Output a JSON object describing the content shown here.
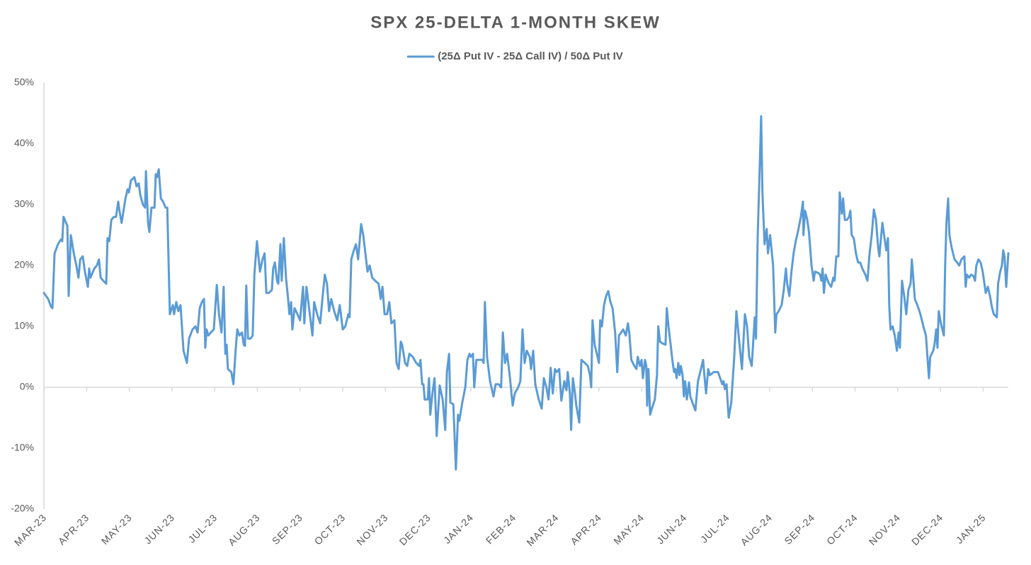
{
  "chart_data": {
    "type": "line",
    "title": "SPX 25-DELTA 1-MONTH SKEW",
    "xlim": [
      0,
      22.59
    ],
    "xticks": [
      {
        "value": 0,
        "label": "MAR-23"
      },
      {
        "value": 1,
        "label": "APR-23"
      },
      {
        "value": 2,
        "label": "MAY-23"
      },
      {
        "value": 3,
        "label": "JUN-23"
      },
      {
        "value": 4,
        "label": "JUL-23"
      },
      {
        "value": 5,
        "label": "AUG-23"
      },
      {
        "value": 6,
        "label": "SEP-23"
      },
      {
        "value": 7,
        "label": "OCT-23"
      },
      {
        "value": 8,
        "label": "NOV-23"
      },
      {
        "value": 9,
        "label": "DEC-23"
      },
      {
        "value": 10,
        "label": "JAN-24"
      },
      {
        "value": 11,
        "label": "FEB-24"
      },
      {
        "value": 12,
        "label": "MAR-24"
      },
      {
        "value": 13,
        "label": "APR-24"
      },
      {
        "value": 14,
        "label": "MAY-24"
      },
      {
        "value": 15,
        "label": "JUN-24"
      },
      {
        "value": 16,
        "label": "JUL-24"
      },
      {
        "value": 17,
        "label": "AUG-24"
      },
      {
        "value": 18,
        "label": "SEP-24"
      },
      {
        "value": 19,
        "label": "OCT-24"
      },
      {
        "value": 20,
        "label": "NOV-24"
      },
      {
        "value": 21,
        "label": "DEC-24"
      },
      {
        "value": 22,
        "label": "JAN-25"
      }
    ],
    "ylim": [
      -20,
      50
    ],
    "yticks": [
      {
        "value": -20,
        "label": "-20%"
      },
      {
        "value": -10,
        "label": "-10%"
      },
      {
        "value": 0,
        "label": "0%"
      },
      {
        "value": 10,
        "label": "10%"
      },
      {
        "value": 20,
        "label": "20%"
      },
      {
        "value": 30,
        "label": "30%"
      },
      {
        "value": 40,
        "label": "40%"
      },
      {
        "value": 50,
        "label": "50%"
      }
    ],
    "grid": false,
    "legend": "top",
    "x": [
      0.0,
      0.1,
      0.17,
      0.2,
      0.25,
      0.33,
      0.4,
      0.43,
      0.46,
      0.55,
      0.58,
      0.63,
      0.7,
      0.76,
      0.81,
      0.85,
      0.91,
      0.96,
      1.03,
      1.06,
      1.09,
      1.18,
      1.24,
      1.29,
      1.33,
      1.39,
      1.46,
      1.49,
      1.53,
      1.58,
      1.64,
      1.69,
      1.74,
      1.77,
      1.82,
      1.91,
      1.96,
      1.99,
      2.04,
      2.12,
      2.17,
      2.22,
      2.26,
      2.32,
      2.37,
      2.39,
      2.44,
      2.47,
      2.52,
      2.59,
      2.62,
      2.65,
      2.69,
      2.74,
      2.79,
      2.85,
      2.89,
      2.95,
      3.02,
      3.05,
      3.1,
      3.15,
      3.2,
      3.27,
      3.35,
      3.4,
      3.48,
      3.55,
      3.6,
      3.65,
      3.7,
      3.75,
      3.78,
      3.81,
      3.85,
      3.91,
      3.98,
      4.05,
      4.1,
      4.16,
      4.21,
      4.25,
      4.28,
      4.31,
      4.39,
      4.44,
      4.49,
      4.53,
      4.58,
      4.64,
      4.68,
      4.71,
      4.74,
      4.78,
      4.84,
      4.89,
      4.93,
      4.99,
      5.06,
      5.12,
      5.17,
      5.21,
      5.27,
      5.34,
      5.37,
      5.41,
      5.46,
      5.49,
      5.54,
      5.57,
      5.62,
      5.67,
      5.72,
      5.75,
      5.79,
      5.82,
      5.87,
      5.94,
      6.0,
      6.07,
      6.1,
      6.15,
      6.22,
      6.29,
      6.33,
      6.4,
      6.47,
      6.53,
      6.58,
      6.63,
      6.68,
      6.73,
      6.8,
      6.87,
      6.93,
      7.0,
      7.06,
      7.13,
      7.16,
      7.2,
      7.26,
      7.31,
      7.36,
      7.43,
      7.48,
      7.53,
      7.58,
      7.63,
      7.69,
      7.76,
      7.84,
      7.89,
      7.93,
      7.98,
      8.04,
      8.09,
      8.14,
      8.21,
      8.26,
      8.31,
      8.36,
      8.39,
      8.46,
      8.51,
      8.56,
      8.64,
      8.72,
      8.79,
      8.82,
      8.86,
      8.89,
      8.92,
      8.99,
      9.02,
      9.05,
      9.1,
      9.15,
      9.2,
      9.27,
      9.34,
      9.4,
      9.44,
      9.49,
      9.52,
      9.59,
      9.65,
      9.7,
      9.73,
      9.8,
      9.87,
      9.92,
      9.97,
      10.0,
      10.05,
      10.08,
      10.13,
      10.18,
      10.27,
      10.3,
      10.33,
      10.38,
      10.45,
      10.53,
      10.58,
      10.65,
      10.71,
      10.75,
      10.8,
      10.85,
      10.91,
      10.98,
      11.03,
      11.11,
      11.16,
      11.21,
      11.26,
      11.31,
      11.38,
      11.41,
      11.46,
      11.51,
      11.59,
      11.66,
      11.71,
      11.77,
      11.82,
      11.87,
      11.92,
      11.97,
      12.01,
      12.07,
      12.12,
      12.19,
      12.24,
      12.27,
      12.32,
      12.35,
      12.39,
      12.44,
      12.47,
      12.54,
      12.59,
      12.67,
      12.74,
      12.79,
      12.82,
      12.85,
      12.9,
      12.97,
      13.0,
      13.03,
      13.07,
      13.12,
      13.17,
      13.22,
      13.27,
      13.32,
      13.38,
      13.43,
      13.47,
      13.52,
      13.57,
      13.63,
      13.68,
      13.71,
      13.76,
      13.83,
      13.88,
      13.91,
      13.96,
      14.0,
      14.03,
      14.08,
      14.11,
      14.13,
      14.16,
      14.2,
      14.24,
      14.31,
      14.36,
      14.39,
      14.43,
      14.49,
      14.56,
      14.59,
      14.63,
      14.68,
      14.72,
      14.76,
      14.79,
      14.82,
      14.86,
      14.89,
      14.92,
      14.96,
      14.99,
      15.02,
      15.06,
      15.11,
      15.14,
      15.19,
      15.26,
      15.32,
      15.39,
      15.44,
      15.47,
      15.51,
      15.56,
      15.6,
      15.69,
      15.79,
      15.84,
      15.89,
      15.92,
      15.95,
      15.99,
      16.02,
      16.04,
      16.1,
      16.17,
      16.22,
      16.28,
      16.35,
      16.42,
      16.47,
      16.52,
      16.58,
      16.65,
      16.68,
      16.72,
      16.77,
      16.8,
      16.83,
      16.88,
      16.93,
      16.96,
      17.01,
      17.08,
      17.13,
      17.16,
      17.21,
      17.28,
      17.33,
      17.38,
      17.41,
      17.46,
      17.51,
      17.56,
      17.61,
      17.66,
      17.73,
      17.78,
      17.79,
      17.83,
      17.88,
      17.92,
      17.98,
      18.03,
      18.06,
      18.13,
      18.18,
      18.21,
      18.24,
      18.27,
      18.31,
      18.36,
      18.39,
      18.44,
      18.49,
      18.52,
      18.56,
      18.61,
      18.64,
      18.69,
      18.72,
      18.76,
      18.81,
      18.86,
      18.89,
      18.92,
      18.97,
      19.02,
      19.07,
      19.12,
      19.17,
      19.24,
      19.29,
      19.34,
      19.39,
      19.44,
      19.49,
      19.54,
      19.57,
      19.6,
      19.64,
      19.7,
      19.73,
      19.77,
      19.8,
      19.83,
      19.88,
      19.93,
      19.98,
      20.02,
      20.05,
      20.1,
      20.15,
      20.2,
      20.25,
      20.3,
      20.33,
      20.4,
      20.46,
      20.53,
      20.6,
      20.66,
      20.73,
      20.76,
      20.83,
      20.86,
      20.9,
      20.93,
      20.96,
      21.01,
      21.08,
      21.11,
      21.14,
      21.18,
      21.21,
      21.26,
      21.33,
      21.39,
      21.44,
      21.49,
      21.56,
      21.59,
      21.62,
      21.67,
      21.72,
      21.77,
      21.81,
      21.84,
      21.89,
      21.94,
      21.99,
      22.02,
      22.06,
      22.11,
      22.16,
      22.21,
      22.25,
      22.32,
      22.35,
      22.4,
      22.44,
      22.47,
      22.5,
      22.54,
      22.59
    ],
    "series": [
      {
        "name": "(25Δ Put IV - 25Δ Call IV) / 50Δ Put IV",
        "color": "#5b9bd5",
        "values": [
          15.5,
          14.5,
          13.2,
          13,
          22,
          23.5,
          24.3,
          24,
          28,
          26.5,
          15,
          25,
          22,
          20,
          18,
          21,
          21.5,
          19,
          16.5,
          19.5,
          18,
          19.5,
          20,
          21,
          18,
          17.5,
          17,
          24.5,
          24,
          27.5,
          28,
          28,
          30.5,
          29,
          27,
          31,
          32.5,
          32,
          34,
          34.5,
          33,
          33.5,
          31.5,
          30,
          29.5,
          35.5,
          27,
          25.5,
          29.5,
          29.5,
          35,
          34.5,
          35.8,
          31,
          30.5,
          29.5,
          29.5,
          12,
          13.5,
          12,
          14,
          12.5,
          13.5,
          6,
          4,
          8,
          9.5,
          10,
          9,
          13,
          14,
          14.5,
          6.5,
          9.5,
          8.5,
          9,
          9.5,
          16.8,
          12,
          9,
          16.5,
          5.5,
          7,
          3,
          2.5,
          0.5,
          6,
          9.5,
          8.5,
          9,
          7,
          6.8,
          16.7,
          8,
          8,
          8.5,
          18.5,
          24,
          19,
          21,
          22,
          15.5,
          15.5,
          16,
          19.5,
          20.5,
          17.5,
          17,
          23.5,
          17.5,
          24.5,
          18,
          14.5,
          12,
          14,
          9.5,
          13,
          12,
          11,
          16.5,
          10.5,
          16.5,
          12.5,
          8.5,
          14,
          12,
          10.5,
          15,
          18.5,
          17,
          12.5,
          14.5,
          12.5,
          11,
          13.5,
          9.5,
          10,
          12,
          11.5,
          21,
          22.5,
          23.5,
          21,
          26.8,
          25,
          22,
          19,
          20,
          18,
          17.5,
          17,
          14.5,
          16.5,
          12,
          12,
          14,
          10.5,
          11,
          4,
          3,
          7.5,
          7,
          4,
          3.5,
          5.5,
          5,
          4,
          3.5,
          4.5,
          0.5,
          0.5,
          -2,
          -2,
          1.5,
          -4.5,
          -1,
          1.5,
          -8,
          0.3,
          -2,
          -7,
          2.5,
          5.5,
          -2.5,
          -2.8,
          -13.5,
          -4.5,
          -5.5,
          -2.5,
          0,
          4.5,
          5.5,
          5,
          5.5,
          0,
          4.5,
          4.5,
          4.5,
          4,
          14,
          5,
          1,
          -1.5,
          0.5,
          0.5,
          0,
          9,
          4,
          5.5,
          2,
          -3,
          -1,
          0,
          1,
          9.5,
          4,
          6,
          5,
          3,
          6,
          0.5,
          -2,
          -3.5,
          1.5,
          0,
          -2,
          3.2,
          -1,
          3,
          2.5,
          3,
          -2.2,
          1,
          -0.5,
          2.5,
          -1,
          -7,
          1.5,
          -1,
          -3,
          -5.8,
          4.5,
          4,
          3.5,
          2,
          0,
          11,
          7,
          5,
          4,
          11,
          10,
          13.5,
          15,
          15.8,
          14,
          13,
          9,
          2.5,
          8.5,
          9,
          9.5,
          8.5,
          10.5,
          9,
          4.5,
          3.5,
          3,
          5,
          3.5,
          4.5,
          1.5,
          4.5,
          3.5,
          -3,
          3,
          -4.5,
          -3.5,
          -2,
          2,
          10,
          7.5,
          7.2,
          7,
          13,
          10,
          7,
          4.5,
          2.5,
          3,
          1.5,
          4,
          2,
          3.5,
          2,
          -1.5,
          1,
          -2,
          0.8,
          -1.5,
          -2.5,
          -3.8,
          1,
          3,
          4.5,
          2,
          -1,
          3,
          2,
          2.5,
          2.5,
          1.5,
          0.5,
          1,
          -0.3,
          0.5,
          -3,
          -5,
          -2.5,
          5,
          12.5,
          8,
          3,
          12,
          10,
          5,
          3.5,
          11.5,
          8,
          25,
          37,
          44.5,
          32,
          23.5,
          26,
          22,
          25,
          20,
          9,
          12,
          12.5,
          13.5,
          16,
          19.5,
          17,
          15,
          19,
          22,
          24,
          25.5,
          28,
          30.5,
          25,
          29,
          27.5,
          25.5,
          20,
          17.5,
          19,
          18.8,
          18.5,
          17.5,
          19.5,
          15.5,
          18.5,
          17.5,
          17,
          16.5,
          18,
          17.5,
          21.5,
          21.5,
          32,
          28.5,
          31,
          27.5,
          27.5,
          28,
          29,
          25,
          24.5,
          22,
          20.5,
          20.5,
          19.5,
          18.5,
          17.5,
          22,
          25,
          29.2,
          27.5,
          23,
          21.5,
          24,
          27,
          24,
          22.5,
          24.5,
          13.5,
          9.5,
          10,
          8.5,
          6,
          9,
          6.5,
          17.5,
          15,
          12,
          16,
          17,
          21,
          14.5,
          13.5,
          12,
          10,
          8.5,
          1.5,
          5,
          6,
          7,
          9.5,
          6.5,
          12.5,
          10.5,
          8.5,
          20,
          27,
          31,
          25,
          23,
          21,
          20.5,
          20,
          21,
          21.5,
          16.5,
          18.5,
          18,
          18.5,
          18.3,
          17.5,
          20,
          21,
          20.5,
          19,
          17.5,
          15.5,
          16.5,
          15,
          13,
          12,
          11.5,
          17,
          19,
          20,
          22.5,
          21.5,
          16.5,
          22
        ]
      }
    ]
  }
}
